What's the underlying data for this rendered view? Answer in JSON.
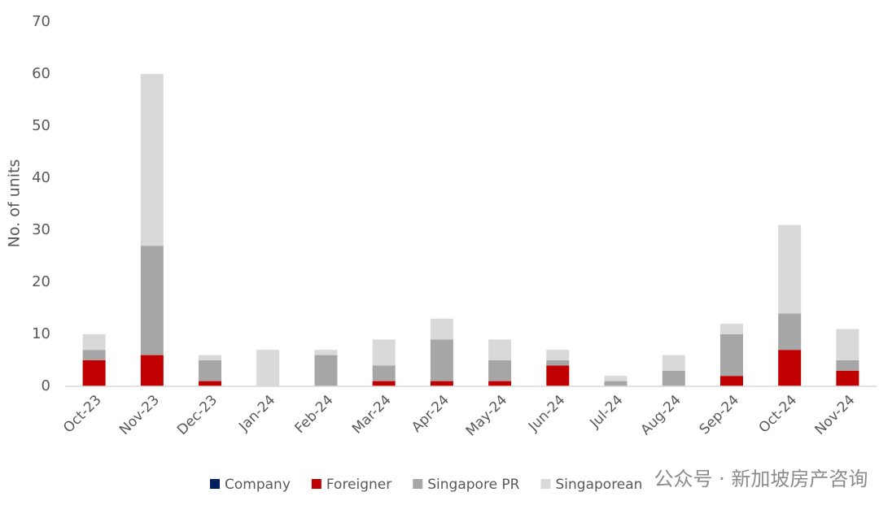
{
  "chart_data": {
    "type": "stacked_bar",
    "y_label": "No. of units",
    "categories": [
      "Oct-23",
      "Nov-23",
      "Dec-23",
      "Jan-24",
      "Feb-24",
      "Mar-24",
      "Apr-24",
      "May-24",
      "Jun-24",
      "Jul-24",
      "Aug-24",
      "Sep-24",
      "Oct-24",
      "Nov-24"
    ],
    "series": [
      {
        "name": "Company",
        "color": "#002060",
        "values": [
          0,
          0,
          0,
          0,
          0,
          0,
          0,
          0,
          0,
          0,
          0,
          0,
          0,
          0
        ]
      },
      {
        "name": "Foreigner",
        "color": "#c00000",
        "values": [
          5,
          6,
          1,
          0,
          0,
          1,
          1,
          1,
          4,
          0,
          0,
          2,
          7,
          3
        ]
      },
      {
        "name": "Singapore PR",
        "color": "#a6a6a6",
        "values": [
          2,
          21,
          4,
          0,
          6,
          3,
          8,
          4,
          1,
          1,
          3,
          8,
          7,
          2
        ]
      },
      {
        "name": "Singaporean",
        "color": "#d9d9d9",
        "values": [
          3,
          33,
          1,
          7,
          1,
          5,
          4,
          4,
          2,
          1,
          3,
          2,
          17,
          6
        ]
      }
    ],
    "ylim": [
      0,
      70
    ],
    "yticks": [
      0,
      10,
      20,
      30,
      40,
      50,
      60,
      70
    ],
    "grid": false,
    "watermark": "公众号 · 新加坡房产咨询"
  }
}
